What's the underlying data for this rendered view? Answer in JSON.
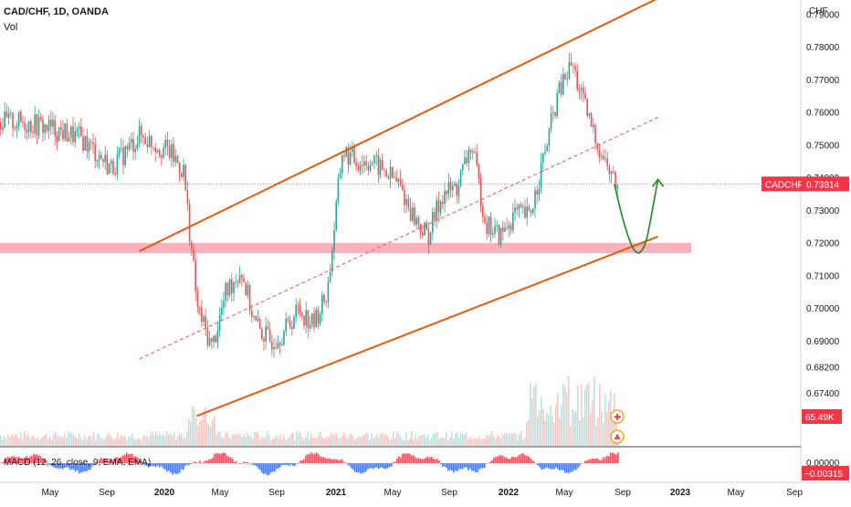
{
  "header": {
    "symbol_line": "CAD/CHF, 1D, OANDA",
    "volume_label": "Vol",
    "macd_label": "MACD (12, 26, close, 9, EMA, EMA)"
  },
  "price_axis": {
    "currency": "CHF",
    "ticks": [
      "0.79000",
      "0.78000",
      "0.77000",
      "0.76000",
      "0.75000",
      "0.74000",
      "0.73000",
      "0.72000",
      "0.71000",
      "0.70000",
      "0.69000",
      "0.68200",
      "0.67400",
      "0.66600"
    ],
    "current_symbol": "CADCHF",
    "current_price": "0.73814",
    "volume_badge": "65.49K",
    "macd_ticks": [
      "0.00000"
    ],
    "macd_badge": "−0.00315"
  },
  "time_axis": {
    "labels": [
      "May",
      "Sep",
      "2020",
      "May",
      "Sep",
      "2021",
      "May",
      "Sep",
      "2022",
      "May",
      "Sep",
      "2023",
      "May",
      "Sep"
    ]
  },
  "colors": {
    "up": "#26a69a",
    "down": "#ef5350",
    "channel": "#e8590c",
    "projection": "#1e8a1e",
    "support_zone": "#f8a5b0",
    "badge": "#f23645",
    "macd_hist_up": "#2962ff",
    "macd_hist_down": "#f23645"
  },
  "chart_data": {
    "type": "candlestick",
    "title": "CAD/CHF, 1D, OANDA",
    "x": [
      "2019-03",
      "2019-05",
      "2019-07",
      "2019-09",
      "2019-11",
      "2020-01",
      "2020-02",
      "2020-03",
      "2020-04",
      "2020-05",
      "2020-06",
      "2020-07",
      "2020-08",
      "2020-09",
      "2020-10",
      "2020-11",
      "2020-12",
      "2021-01",
      "2021-02",
      "2021-03",
      "2021-04",
      "2021-05",
      "2021-06",
      "2021-07",
      "2021-08",
      "2021-09",
      "2021-10",
      "2021-11",
      "2021-12",
      "2022-01",
      "2022-02",
      "2022-03",
      "2022-04",
      "2022-05",
      "2022-06",
      "2022-07",
      "2022-08"
    ],
    "series": [
      {
        "values": [
          0.757,
          0.755,
          0.752,
          0.743,
          0.753,
          0.748,
          0.742,
          0.7,
          0.688,
          0.705,
          0.712,
          0.695,
          0.69,
          0.693,
          0.7,
          0.695,
          0.705,
          0.748,
          0.745,
          0.745,
          0.742,
          0.738,
          0.728,
          0.722,
          0.735,
          0.737,
          0.75,
          0.726,
          0.722,
          0.729,
          0.728,
          0.745,
          0.765,
          0.775,
          0.76,
          0.748,
          0.738
        ]
      }
    ],
    "ylim": [
      0.666,
      0.79
    ],
    "current_value": 0.73814,
    "support_zone": [
      0.7175,
      0.7195
    ],
    "channel": {
      "upper": [
        [
          "2019-11",
          0.7175
        ],
        [
          "2021-01",
          0.753
        ],
        [
          "2022-05",
          0.781
        ],
        [
          "2022-11",
          0.795
        ]
      ],
      "lower": [
        [
          "2020-03",
          0.667
        ],
        [
          "2022-11",
          0.722
        ]
      ],
      "mid": [
        [
          "2019-11",
          0.6845
        ],
        [
          "2022-11",
          0.7585
        ]
      ]
    },
    "projection": [
      [
        "2022-08",
        0.738
      ],
      [
        "2022-10",
        0.7185
      ],
      [
        "2022-11",
        0.7395
      ]
    ],
    "volume_last": "65.49K",
    "macd_last": -0.00315,
    "xlabel": "",
    "ylabel": "CHF"
  }
}
